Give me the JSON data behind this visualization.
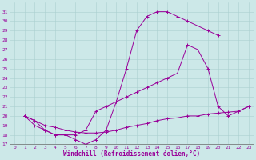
{
  "xlabel": "Windchill (Refroidissement éolien,°C)",
  "xlim": [
    -0.5,
    23.5
  ],
  "ylim": [
    17,
    32
  ],
  "xticks": [
    0,
    1,
    2,
    3,
    4,
    5,
    6,
    7,
    8,
    9,
    10,
    11,
    12,
    13,
    14,
    15,
    16,
    17,
    18,
    19,
    20,
    21,
    22,
    23
  ],
  "yticks": [
    17,
    18,
    19,
    20,
    21,
    22,
    23,
    24,
    25,
    26,
    27,
    28,
    29,
    30,
    31
  ],
  "line1": {
    "x": [
      1,
      2,
      3,
      4,
      5,
      6,
      7,
      8,
      9,
      10,
      11,
      12,
      13,
      14,
      15,
      16,
      17,
      18,
      19,
      20
    ],
    "y": [
      20,
      19.5,
      18.5,
      18,
      18,
      17.5,
      17,
      17.5,
      18.5,
      21.5,
      25,
      29,
      30.5,
      31,
      31,
      30.5,
      30,
      29.5,
      29,
      28.5
    ]
  },
  "line2": {
    "x": [
      1,
      2,
      3,
      4,
      5,
      6,
      7,
      8,
      9,
      10,
      11,
      12,
      13,
      14,
      15,
      16,
      17,
      18,
      19,
      20,
      21,
      22,
      23
    ],
    "y": [
      20,
      19,
      18.5,
      18,
      18,
      18,
      18.5,
      20.5,
      21,
      21.5,
      22,
      22.5,
      23,
      23.5,
      24,
      24.5,
      27.5,
      27,
      25,
      21,
      20,
      20.5,
      21
    ]
  },
  "line3": {
    "x": [
      1,
      2,
      3,
      4,
      5,
      6,
      7,
      8,
      9,
      10,
      11,
      12,
      13,
      14,
      15,
      16,
      17,
      18,
      19,
      20,
      21,
      22,
      23
    ],
    "y": [
      20,
      19.5,
      19,
      18.8,
      18.5,
      18.3,
      18.2,
      18.2,
      18.3,
      18.5,
      18.8,
      19,
      19.2,
      19.5,
      19.7,
      19.8,
      20,
      20,
      20.2,
      20.3,
      20.4,
      20.5,
      21
    ]
  },
  "bg_color": "#cce8e8",
  "grid_color": "#aad0d0",
  "line_color": "#990099",
  "tick_fontsize": 4.5,
  "label_fontsize": 5.5
}
